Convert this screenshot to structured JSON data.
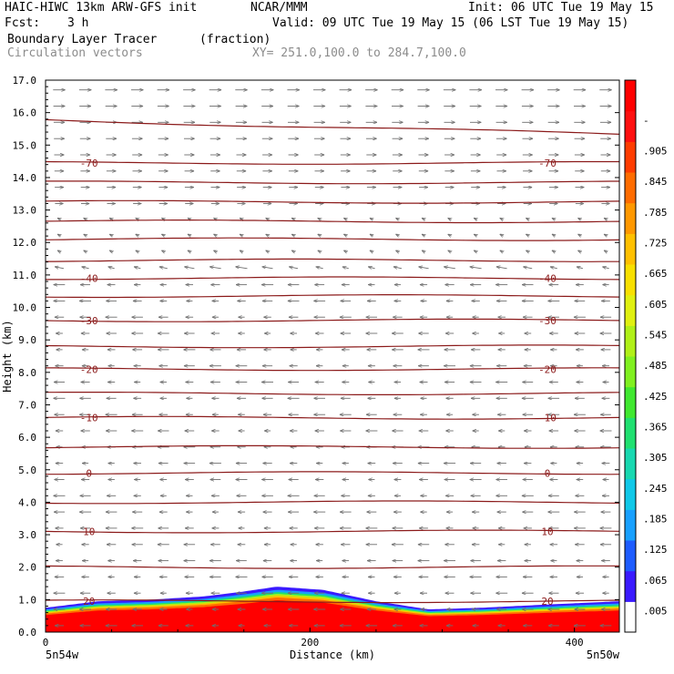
{
  "header": {
    "model_line": "HAIC-HIWC 13km ARW-GFS init",
    "org": "NCAR/MMM",
    "init": "Init: 06 UTC Tue 19 May 15",
    "fcst_label": "Fcst:",
    "fcst_value": "3 h",
    "valid": "Valid: 09 UTC Tue 19 May 15 (06 LST Tue 19 May 15)",
    "field_name": "Boundary Layer Tracer",
    "field_units": "(fraction)",
    "vector_name": "Circulation vectors",
    "xy_range": "XY= 251.0,100.0 to 284.7,100.0"
  },
  "chart_data": {
    "type": "heatmap",
    "ylabel": "Height (km)",
    "xlabel": "Distance (km)",
    "ylim": [
      0,
      17
    ],
    "xlim": [
      0,
      434
    ],
    "yticks": [
      "0.0",
      "1.0",
      "2.0",
      "3.0",
      "4.0",
      "5.0",
      "6.0",
      "7.0",
      "8.0",
      "9.0",
      "10.0",
      "11.0",
      "12.0",
      "13.0",
      "14.0",
      "15.0",
      "16.0",
      "17.0"
    ],
    "xticks": [
      "0",
      "200",
      "400"
    ],
    "x_endpoints": {
      "left": "5n54w",
      "right": "5n50w"
    },
    "colorbar": {
      "labels": [
        ".005",
        ".065",
        ".125",
        ".185",
        ".245",
        ".305",
        ".365",
        ".425",
        ".485",
        ".545",
        ".605",
        ".665",
        ".725",
        ".785",
        ".845",
        ".905",
        "-"
      ],
      "colors": [
        "#ffffff",
        "#3a1aff",
        "#1e5cff",
        "#18a0ff",
        "#10c8e8",
        "#18d8b0",
        "#20e070",
        "#40e830",
        "#80f020",
        "#b0f018",
        "#e0f010",
        "#f8e000",
        "#ffc000",
        "#ff9800",
        "#ff6c00",
        "#ff3c00",
        "#ff1010",
        "#ff0000"
      ]
    },
    "contours": {
      "variable": "temperature",
      "levels_labeled": [
        {
          "value": "-70",
          "height_km": 14.45
        },
        {
          "value": "-40",
          "height_km": 10.9
        },
        {
          "value": "-30",
          "height_km": 9.6
        },
        {
          "value": "-20",
          "height_km": 8.1
        },
        {
          "value": "-10",
          "height_km": 6.6
        },
        {
          "value": "0",
          "height_km": 4.9
        },
        {
          "value": "10",
          "height_km": 3.1
        },
        {
          "value": "20",
          "height_km": 0.95
        }
      ],
      "unlabeled_heights_km": [
        15.55,
        13.85,
        13.25,
        12.65,
        12.1,
        11.45,
        10.35,
        8.8,
        7.35,
        5.7,
        4.0,
        2.0
      ]
    },
    "tracer_top_profile_km": [
      {
        "x": 0,
        "top": 0.75
      },
      {
        "x": 40,
        "top": 0.95
      },
      {
        "x": 80,
        "top": 1.0
      },
      {
        "x": 120,
        "top": 1.1
      },
      {
        "x": 150,
        "top": 1.25
      },
      {
        "x": 175,
        "top": 1.4
      },
      {
        "x": 210,
        "top": 1.3
      },
      {
        "x": 250,
        "top": 0.95
      },
      {
        "x": 290,
        "top": 0.7
      },
      {
        "x": 330,
        "top": 0.75
      },
      {
        "x": 380,
        "top": 0.85
      },
      {
        "x": 434,
        "top": 0.95
      }
    ],
    "vectors": {
      "upper_direction": "east",
      "lower_direction": "west",
      "reversal_height_km": 13.0
    }
  }
}
